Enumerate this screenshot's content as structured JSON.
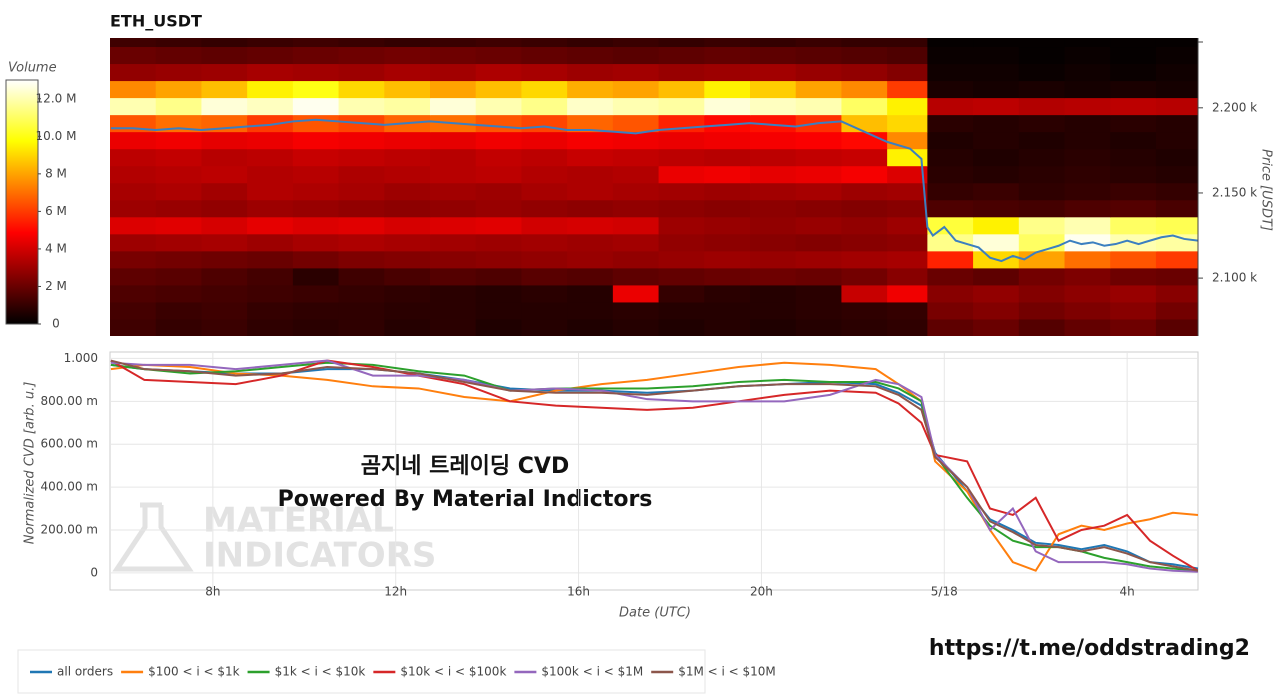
{
  "chart_data": [
    {
      "type": "heatmap",
      "title": "ETH_USDT",
      "y_label": "Price [USDT]",
      "xlim": [
        5.75,
        29.55
      ],
      "ylim": [
        2066,
        2241
      ],
      "x_bins": [
        5.75,
        6.75,
        7.75,
        8.75,
        9.75,
        10.75,
        11.75,
        12.75,
        13.75,
        14.75,
        15.75,
        16.75,
        17.75,
        18.75,
        19.75,
        20.75,
        21.75,
        22.75,
        23.63,
        24.63,
        25.63,
        26.63,
        27.63,
        28.63,
        29.55
      ],
      "y_bins": [
        2066,
        2076,
        2086,
        2096,
        2106,
        2116,
        2126,
        2136,
        2146,
        2156,
        2166,
        2176,
        2186,
        2196,
        2206,
        2216,
        2226,
        2236,
        2241
      ],
      "yticks": [
        {
          "value": 2100,
          "label": "2.100 k"
        },
        {
          "value": 2150,
          "label": "2.150 k"
        },
        {
          "value": 2200,
          "label": "2.200 k"
        }
      ],
      "colorbar": {
        "title": "Volume",
        "colormap": "hot",
        "clim": [
          0,
          13
        ],
        "ticks": [
          0,
          {
            "value": 2,
            "label": "2 M"
          },
          {
            "value": 4,
            "label": "4 M"
          },
          {
            "value": 6,
            "label": "6 M"
          },
          {
            "value": 8,
            "label": "8 M"
          },
          {
            "value": 10,
            "label": "10.0 M"
          },
          {
            "value": 12,
            "label": "12.0 M"
          }
        ]
      },
      "values": [
        [
          1.2,
          1.0,
          1.1,
          0.9,
          0.8,
          0.9,
          0.7,
          0.8,
          0.6,
          0.7,
          0.6,
          0.7,
          0.6,
          0.7,
          0.6,
          0.7,
          0.8,
          0.9,
          1.8,
          2.0,
          1.6,
          1.9,
          2.1,
          1.7
        ],
        [
          1.3,
          1.1,
          1.2,
          1.0,
          0.9,
          0.9,
          0.8,
          0.8,
          0.7,
          0.7,
          0.7,
          0.8,
          0.7,
          0.7,
          0.7,
          0.8,
          0.9,
          1.0,
          2.3,
          2.5,
          2.2,
          2.4,
          2.6,
          2.2
        ],
        [
          1.5,
          1.4,
          1.3,
          1.2,
          1.1,
          1.0,
          0.9,
          0.8,
          0.7,
          0.8,
          0.7,
          4.5,
          1.0,
          0.8,
          0.7,
          0.8,
          3.8,
          4.6,
          2.6,
          2.8,
          2.5,
          2.7,
          2.9,
          2.6
        ],
        [
          1.8,
          1.7,
          1.5,
          1.3,
          0.8,
          1.2,
          1.4,
          1.6,
          1.5,
          1.7,
          1.6,
          1.8,
          1.9,
          2.0,
          2.1,
          2.0,
          2.2,
          2.6,
          2.0,
          1.8,
          2.2,
          2.4,
          2.1,
          2.0
        ],
        [
          2.3,
          2.2,
          2.1,
          2.0,
          2.2,
          2.4,
          2.5,
          2.6,
          2.7,
          2.8,
          2.9,
          2.8,
          2.9,
          3.0,
          2.9,
          3.0,
          3.1,
          3.2,
          5.5,
          9.0,
          8.0,
          7.0,
          6.5,
          6.0
        ],
        [
          3.0,
          3.1,
          3.2,
          3.0,
          3.2,
          3.3,
          3.2,
          3.1,
          3.0,
          3.1,
          3.0,
          3.1,
          2.8,
          2.7,
          2.6,
          2.5,
          2.6,
          2.7,
          11.5,
          12.5,
          11.0,
          12.8,
          12.0,
          11.8
        ],
        [
          4.2,
          4.3,
          4.1,
          4.4,
          4.2,
          4.3,
          4.1,
          4.2,
          4.3,
          4.0,
          4.1,
          4.0,
          3.0,
          2.9,
          2.8,
          2.9,
          2.8,
          3.0,
          10.5,
          9.5,
          11.5,
          12.0,
          11.0,
          10.8
        ],
        [
          3.0,
          2.9,
          2.8,
          3.0,
          2.9,
          2.8,
          2.7,
          2.8,
          2.9,
          2.8,
          2.7,
          2.8,
          2.7,
          2.6,
          2.7,
          2.6,
          2.5,
          2.6,
          1.5,
          1.4,
          1.3,
          1.5,
          1.6,
          1.4
        ],
        [
          3.2,
          3.3,
          3.1,
          3.4,
          3.3,
          3.2,
          3.0,
          3.1,
          3.0,
          3.2,
          3.3,
          3.2,
          3.1,
          3.0,
          3.1,
          3.2,
          3.0,
          3.1,
          1.0,
          1.1,
          0.9,
          1.0,
          1.1,
          1.0
        ],
        [
          3.4,
          3.5,
          3.6,
          3.4,
          3.5,
          3.3,
          3.4,
          3.5,
          3.6,
          3.4,
          3.3,
          3.4,
          4.5,
          4.6,
          4.4,
          4.5,
          4.7,
          4.2,
          0.8,
          0.7,
          0.8,
          0.9,
          0.8,
          0.7
        ],
        [
          3.6,
          3.7,
          3.5,
          3.6,
          3.8,
          3.7,
          3.6,
          3.5,
          3.7,
          3.6,
          3.8,
          3.7,
          3.6,
          3.5,
          3.6,
          3.7,
          3.8,
          9.5,
          0.7,
          0.6,
          0.7,
          0.8,
          0.7,
          0.6
        ],
        [
          4.5,
          4.6,
          4.4,
          4.5,
          4.7,
          4.6,
          4.5,
          4.4,
          4.6,
          4.5,
          4.7,
          4.6,
          4.5,
          4.6,
          4.7,
          4.8,
          5.0,
          7.5,
          0.6,
          0.7,
          0.6,
          0.7,
          0.6,
          0.7
        ],
        [
          6.5,
          7.0,
          6.8,
          6.0,
          6.5,
          6.2,
          6.8,
          7.0,
          6.5,
          6.2,
          6.8,
          6.5,
          5.5,
          5.0,
          5.2,
          5.8,
          8.5,
          9.0,
          0.8,
          0.7,
          0.8,
          0.7,
          0.8,
          0.7
        ],
        [
          12.0,
          11.5,
          12.5,
          12.2,
          12.8,
          12.0,
          11.8,
          12.5,
          12.0,
          11.5,
          12.3,
          12.0,
          11.8,
          12.5,
          12.2,
          12.0,
          11.0,
          9.5,
          3.5,
          3.6,
          3.4,
          3.5,
          3.6,
          3.5
        ],
        [
          7.5,
          8.0,
          8.5,
          9.5,
          10.0,
          9.0,
          8.5,
          8.0,
          8.5,
          9.0,
          8.2,
          8.0,
          8.5,
          9.5,
          8.8,
          8.0,
          7.5,
          6.0,
          0.5,
          0.4,
          0.5,
          0.4,
          0.5,
          0.4
        ],
        [
          2.8,
          2.9,
          3.0,
          3.2,
          3.1,
          3.0,
          3.2,
          3.1,
          3.3,
          3.2,
          3.0,
          3.1,
          2.9,
          3.0,
          3.1,
          2.9,
          2.8,
          2.5,
          0.3,
          0.3,
          0.2,
          0.3,
          0.2,
          0.3
        ],
        [
          2.0,
          1.9,
          1.8,
          1.9,
          2.0,
          2.1,
          2.2,
          2.1,
          2.0,
          1.9,
          1.8,
          1.7,
          1.8,
          1.9,
          1.8,
          1.7,
          1.6,
          1.5,
          0.2,
          0.2,
          0.1,
          0.2,
          0.1,
          0.2
        ],
        [
          1.2,
          1.1,
          1.0,
          1.1,
          1.2,
          1.1,
          1.0,
          1.1,
          1.2,
          1.1,
          1.0,
          1.1,
          1.0,
          1.1,
          1.0,
          1.1,
          1.0,
          1.0,
          0.1,
          0.1,
          0.1,
          0.1,
          0.1,
          0.1
        ]
      ],
      "price_line": {
        "color": "#3b7fc0",
        "x": [
          5.77,
          6.25,
          6.75,
          7.25,
          7.75,
          8.25,
          8.75,
          9.25,
          9.75,
          10.25,
          10.75,
          11.25,
          11.75,
          12.25,
          12.75,
          13.25,
          13.75,
          14.25,
          14.75,
          15.25,
          15.75,
          16.25,
          16.75,
          17.25,
          17.75,
          18.25,
          18.75,
          19.25,
          19.75,
          20.25,
          20.75,
          21.25,
          21.75,
          22.25,
          22.75,
          23.25,
          23.5,
          23.63,
          23.75,
          24.0,
          24.25,
          24.5,
          24.75,
          25.0,
          25.25,
          25.5,
          25.75,
          26.0,
          26.25,
          26.5,
          26.75,
          27.0,
          27.25,
          27.5,
          27.75,
          28.0,
          28.25,
          28.5,
          28.75,
          29.0,
          29.25,
          29.55
        ],
        "values": [
          2188,
          2188,
          2187,
          2188,
          2187,
          2188,
          2189,
          2190,
          2192,
          2193,
          2192,
          2191,
          2190,
          2191,
          2192,
          2191,
          2190,
          2189,
          2188,
          2189,
          2187,
          2187,
          2186,
          2185,
          2187,
          2188,
          2189,
          2190,
          2191,
          2190,
          2189,
          2191,
          2192,
          2186,
          2180,
          2176,
          2170,
          2130,
          2125,
          2130,
          2122,
          2120,
          2118,
          2112,
          2110,
          2113,
          2111,
          2115,
          2117,
          2119,
          2122,
          2120,
          2121,
          2119,
          2120,
          2122,
          2120,
          2122,
          2124,
          2125,
          2123,
          2122
        ]
      }
    },
    {
      "type": "line",
      "x_label": "Date (UTC)",
      "y_label": "Normalized CVD [arb. u.]",
      "xlim": [
        5.75,
        29.55
      ],
      "ylim": [
        -0.08,
        1.03
      ],
      "xticks": [
        {
          "value": 8,
          "label": "8h"
        },
        {
          "value": 12,
          "label": "12h"
        },
        {
          "value": 16,
          "label": "16h"
        },
        {
          "value": 20,
          "label": "20h"
        },
        {
          "value": 24,
          "label": "5/18"
        },
        {
          "value": 28,
          "label": "4h"
        }
      ],
      "yticks": [
        0,
        {
          "value": 0.2,
          "label": "200.00 m"
        },
        {
          "value": 0.4,
          "label": "400.00 m"
        },
        {
          "value": 0.6,
          "label": "600.00 m"
        },
        {
          "value": 0.8,
          "label": "800.00 m"
        },
        {
          "value": 1,
          "label": "1.000"
        }
      ],
      "grid": true,
      "legend": "bottom-left",
      "x": [
        5.77,
        6.5,
        7.5,
        8.5,
        9.5,
        10.5,
        11.5,
        12.5,
        13.5,
        14.5,
        15.5,
        16.5,
        17.5,
        18.5,
        19.5,
        20.5,
        21.5,
        22.5,
        23.0,
        23.5,
        23.8,
        24.5,
        25.0,
        25.5,
        26.0,
        26.5,
        27.0,
        27.5,
        28.0,
        28.5,
        29.0,
        29.55
      ],
      "series": [
        {
          "name": "all orders",
          "color": "#1f77b4",
          "values": [
            0.97,
            0.95,
            0.94,
            0.93,
            0.93,
            0.95,
            0.95,
            0.93,
            0.9,
            0.86,
            0.85,
            0.85,
            0.84,
            0.85,
            0.87,
            0.88,
            0.89,
            0.88,
            0.84,
            0.78,
            0.56,
            0.38,
            0.25,
            0.2,
            0.14,
            0.13,
            0.11,
            0.13,
            0.1,
            0.05,
            0.04,
            0.02
          ]
        },
        {
          "name": "$100 < i < $1k",
          "color": "#ff7f0e",
          "values": [
            0.95,
            0.97,
            0.96,
            0.93,
            0.92,
            0.9,
            0.87,
            0.86,
            0.82,
            0.8,
            0.85,
            0.88,
            0.9,
            0.93,
            0.96,
            0.98,
            0.97,
            0.95,
            0.88,
            0.8,
            0.52,
            0.38,
            0.2,
            0.05,
            0.01,
            0.18,
            0.22,
            0.2,
            0.23,
            0.25,
            0.28,
            0.27
          ]
        },
        {
          "name": "$1k < i < $10k",
          "color": "#2ca02c",
          "values": [
            0.97,
            0.95,
            0.93,
            0.94,
            0.96,
            0.98,
            0.97,
            0.94,
            0.92,
            0.85,
            0.86,
            0.86,
            0.86,
            0.87,
            0.89,
            0.9,
            0.89,
            0.89,
            0.86,
            0.8,
            0.55,
            0.35,
            0.22,
            0.15,
            0.12,
            0.12,
            0.1,
            0.07,
            0.05,
            0.03,
            0.02,
            0.01
          ]
        },
        {
          "name": "$10k < i < $100k",
          "color": "#d62728",
          "values": [
            0.99,
            0.9,
            0.89,
            0.88,
            0.92,
            0.99,
            0.96,
            0.92,
            0.88,
            0.8,
            0.78,
            0.77,
            0.76,
            0.77,
            0.8,
            0.83,
            0.85,
            0.84,
            0.79,
            0.7,
            0.55,
            0.52,
            0.3,
            0.27,
            0.35,
            0.15,
            0.2,
            0.22,
            0.27,
            0.15,
            0.08,
            0.01
          ]
        },
        {
          "name": "$100k < i < $1M",
          "color": "#9467bd",
          "values": [
            0.98,
            0.97,
            0.97,
            0.95,
            0.97,
            0.99,
            0.92,
            0.92,
            0.9,
            0.85,
            0.86,
            0.85,
            0.81,
            0.8,
            0.8,
            0.8,
            0.83,
            0.9,
            0.88,
            0.82,
            0.55,
            0.4,
            0.2,
            0.3,
            0.1,
            0.05,
            0.05,
            0.05,
            0.04,
            0.02,
            0.01,
            0.005
          ]
        },
        {
          "name": "$1M < i < $10M",
          "color": "#8c564b",
          "values": [
            0.99,
            0.95,
            0.94,
            0.92,
            0.93,
            0.96,
            0.95,
            0.93,
            0.89,
            0.85,
            0.84,
            0.84,
            0.83,
            0.85,
            0.87,
            0.88,
            0.88,
            0.87,
            0.83,
            0.76,
            0.54,
            0.4,
            0.24,
            0.19,
            0.13,
            0.12,
            0.1,
            0.12,
            0.09,
            0.05,
            0.03,
            0.01
          ]
        }
      ],
      "annotations": [
        "곰지네 트레이딩 CVD",
        "Powered By Material Indictors"
      ],
      "watermark": [
        "MATERIAL",
        "INDICATORS"
      ]
    }
  ],
  "footer_link": "https://t.me/oddstrading2"
}
